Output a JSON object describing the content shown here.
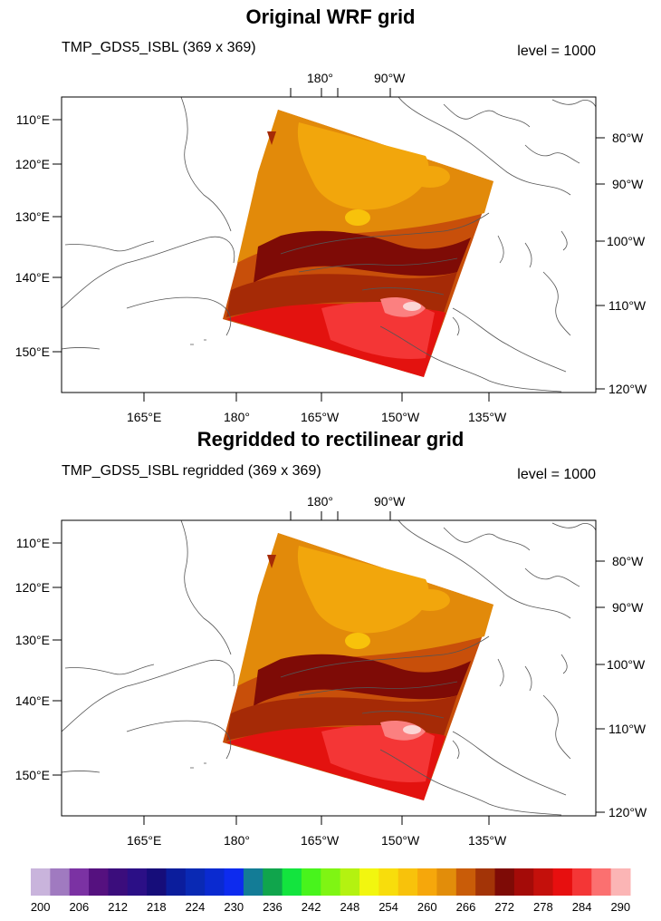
{
  "panels": [
    {
      "title": "Original WRF grid",
      "left_string": "TMP_GDS5_ISBL (369 x 369)",
      "right_string": "level = 1000",
      "top_labels": [
        "180°",
        "90°W"
      ],
      "left_labels": [
        "110°E",
        "120°E",
        "130°E",
        "140°E",
        "150°E"
      ],
      "right_labels": [
        "80°W",
        "90°W",
        "100°W",
        "110°W",
        "120°W"
      ],
      "bottom_labels": [
        "165°E",
        "180°",
        "165°W",
        "150°W",
        "135°W"
      ]
    },
    {
      "title": "Regridded to rectilinear grid",
      "left_string": "TMP_GDS5_ISBL regridded (369 x 369)",
      "right_string": "level = 1000",
      "top_labels": [
        "180°",
        "90°W"
      ],
      "left_labels": [
        "110°E",
        "120°E",
        "130°E",
        "140°E",
        "150°E"
      ],
      "right_labels": [
        "80°W",
        "90°W",
        "100°W",
        "110°W",
        "120°W"
      ],
      "bottom_labels": [
        "165°E",
        "180°",
        "165°W",
        "150°W",
        "135°W"
      ]
    }
  ],
  "colorbar": {
    "labels": [
      "200",
      "206",
      "212",
      "218",
      "224",
      "230",
      "236",
      "242",
      "248",
      "254",
      "260",
      "266",
      "272",
      "278",
      "284",
      "290"
    ],
    "colors": [
      "#c9b4dc",
      "#a07ac0",
      "#7b32a3",
      "#55117f",
      "#3b0d7c",
      "#2b0f86",
      "#160d7a",
      "#0b1d9c",
      "#0929b4",
      "#0a2ad0",
      "#0d2bef",
      "#137c96",
      "#10a54c",
      "#13e43e",
      "#48f41c",
      "#7ff513",
      "#b4f210",
      "#f2f60f",
      "#f8dd0c",
      "#f8c20b",
      "#f6a70b",
      "#e28d0a",
      "#c95c08",
      "#a33407",
      "#7e0b06",
      "#a40b08",
      "#c4100b",
      "#e70f0f",
      "#f43636",
      "#fb7070",
      "#fbb5b5"
    ]
  }
}
